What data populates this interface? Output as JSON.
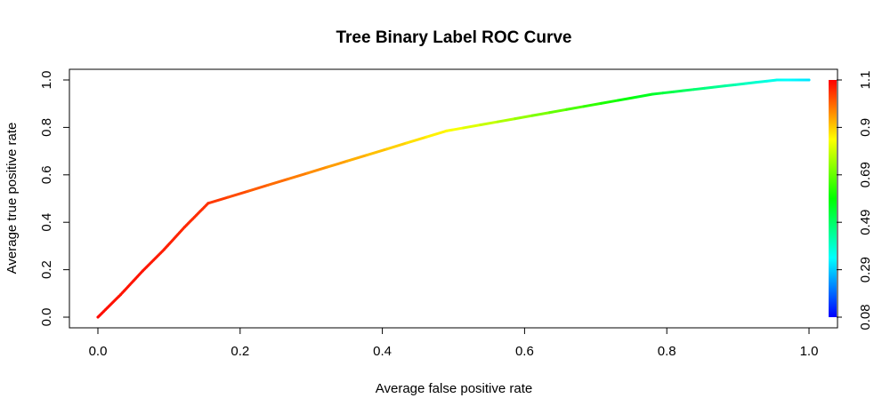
{
  "chart_data": {
    "type": "line",
    "title": "Tree Binary Label ROC Curve",
    "xlabel": "Average false positive rate",
    "ylabel": "Average true positive rate",
    "xlim": [
      0.0,
      1.0
    ],
    "ylim": [
      0.0,
      1.0
    ],
    "x_ticks": [
      "0.0",
      "0.2",
      "0.4",
      "0.6",
      "0.8",
      "1.0"
    ],
    "y_ticks": [
      "0.0",
      "0.2",
      "0.4",
      "0.6",
      "0.8",
      "1.0"
    ],
    "grid": false,
    "legend": "none",
    "series": [
      {
        "points": [
          {
            "x": 0.0,
            "y": 0.0,
            "threshold": 1.09
          },
          {
            "x": 0.032,
            "y": 0.095,
            "threshold": 1.08
          },
          {
            "x": 0.063,
            "y": 0.195,
            "threshold": 1.08
          },
          {
            "x": 0.093,
            "y": 0.285,
            "threshold": 1.07
          },
          {
            "x": 0.122,
            "y": 0.38,
            "threshold": 1.06
          },
          {
            "x": 0.155,
            "y": 0.48,
            "threshold": 1.05
          },
          {
            "x": 0.49,
            "y": 0.785,
            "threshold": 0.85
          },
          {
            "x": 0.78,
            "y": 0.94,
            "threshold": 0.55
          },
          {
            "x": 0.955,
            "y": 1.0,
            "threshold": 0.35
          },
          {
            "x": 1.0,
            "y": 1.0,
            "threshold": 0.31
          }
        ]
      }
    ],
    "colorbar": {
      "labels": [
        "0.08",
        "0.29",
        "0.49",
        "0.69",
        "0.9",
        "1.1"
      ],
      "min": 0.08,
      "max": 1.1,
      "colors": [
        "#0000ff",
        "#00ffff",
        "#00ff00",
        "#ffff00",
        "#ff0000"
      ]
    }
  }
}
